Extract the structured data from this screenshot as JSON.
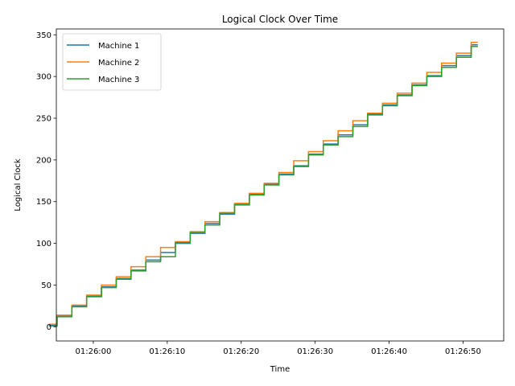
{
  "chart_data": {
    "type": "line",
    "title": "Logical Clock Over Time",
    "xlabel": "Time",
    "ylabel": "Logical Clock",
    "x_range_seconds": [
      -5,
      55.5
    ],
    "xlim_labels": [
      "01:25:55",
      "01:26:55"
    ],
    "ylim": [
      -17,
      357
    ],
    "x_ticks": [
      "01:26:00",
      "01:26:10",
      "01:26:20",
      "01:26:30",
      "01:26:40",
      "01:26:50"
    ],
    "y_ticks": [
      0,
      50,
      100,
      150,
      200,
      250,
      300,
      350
    ],
    "legend_position": "upper-left",
    "grid": false,
    "series": [
      {
        "name": "Machine 1",
        "color": "#1f77b4",
        "points": [
          [
            "01:25:54",
            2
          ],
          [
            "01:25:56",
            13
          ],
          [
            "01:25:58",
            25
          ],
          [
            "01:26:00",
            37
          ],
          [
            "01:26:02",
            48
          ],
          [
            "01:26:04",
            58
          ],
          [
            "01:26:06",
            68
          ],
          [
            "01:26:08",
            80
          ],
          [
            "01:26:10",
            89
          ],
          [
            "01:26:12",
            100
          ],
          [
            "01:26:14",
            112
          ],
          [
            "01:26:16",
            124
          ],
          [
            "01:26:18",
            135
          ],
          [
            "01:26:20",
            147
          ],
          [
            "01:26:22",
            159
          ],
          [
            "01:26:24",
            171
          ],
          [
            "01:26:26",
            183
          ],
          [
            "01:26:28",
            193
          ],
          [
            "01:26:30",
            207
          ],
          [
            "01:26:32",
            219
          ],
          [
            "01:26:34",
            230
          ],
          [
            "01:26:36",
            242
          ],
          [
            "01:26:38",
            254
          ],
          [
            "01:26:40",
            266
          ],
          [
            "01:26:42",
            278
          ],
          [
            "01:26:44",
            290
          ],
          [
            "01:26:46",
            301
          ],
          [
            "01:26:48",
            313
          ],
          [
            "01:26:50",
            325
          ],
          [
            "01:26:52",
            338
          ]
        ]
      },
      {
        "name": "Machine 2",
        "color": "#ff7f0e",
        "points": [
          [
            "01:25:54",
            3
          ],
          [
            "01:25:56",
            14
          ],
          [
            "01:25:58",
            26
          ],
          [
            "01:26:00",
            38
          ],
          [
            "01:26:02",
            50
          ],
          [
            "01:26:04",
            60
          ],
          [
            "01:26:06",
            72
          ],
          [
            "01:26:08",
            84
          ],
          [
            "01:26:10",
            95
          ],
          [
            "01:26:12",
            102
          ],
          [
            "01:26:14",
            114
          ],
          [
            "01:26:16",
            126
          ],
          [
            "01:26:18",
            137
          ],
          [
            "01:26:20",
            148
          ],
          [
            "01:26:22",
            160
          ],
          [
            "01:26:24",
            172
          ],
          [
            "01:26:26",
            185
          ],
          [
            "01:26:28",
            199
          ],
          [
            "01:26:30",
            210
          ],
          [
            "01:26:32",
            223
          ],
          [
            "01:26:34",
            235
          ],
          [
            "01:26:36",
            247
          ],
          [
            "01:26:38",
            256
          ],
          [
            "01:26:40",
            268
          ],
          [
            "01:26:42",
            280
          ],
          [
            "01:26:44",
            292
          ],
          [
            "01:26:46",
            305
          ],
          [
            "01:26:48",
            316
          ],
          [
            "01:26:50",
            328
          ],
          [
            "01:26:52",
            341
          ]
        ]
      },
      {
        "name": "Machine 3",
        "color": "#2ca02c",
        "points": [
          [
            "01:25:54",
            1
          ],
          [
            "01:25:56",
            12
          ],
          [
            "01:25:58",
            24
          ],
          [
            "01:26:00",
            36
          ],
          [
            "01:26:02",
            47
          ],
          [
            "01:26:04",
            57
          ],
          [
            "01:26:06",
            67
          ],
          [
            "01:26:08",
            78
          ],
          [
            "01:26:10",
            84
          ],
          [
            "01:26:12",
            101
          ],
          [
            "01:26:14",
            113
          ],
          [
            "01:26:16",
            122
          ],
          [
            "01:26:18",
            136
          ],
          [
            "01:26:20",
            146
          ],
          [
            "01:26:22",
            158
          ],
          [
            "01:26:24",
            170
          ],
          [
            "01:26:26",
            182
          ],
          [
            "01:26:28",
            192
          ],
          [
            "01:26:30",
            206
          ],
          [
            "01:26:32",
            218
          ],
          [
            "01:26:34",
            228
          ],
          [
            "01:26:36",
            240
          ],
          [
            "01:26:38",
            255
          ],
          [
            "01:26:40",
            265
          ],
          [
            "01:26:42",
            277
          ],
          [
            "01:26:44",
            289
          ],
          [
            "01:26:46",
            300
          ],
          [
            "01:26:48",
            311
          ],
          [
            "01:26:50",
            323
          ],
          [
            "01:26:52",
            336
          ]
        ]
      }
    ]
  }
}
